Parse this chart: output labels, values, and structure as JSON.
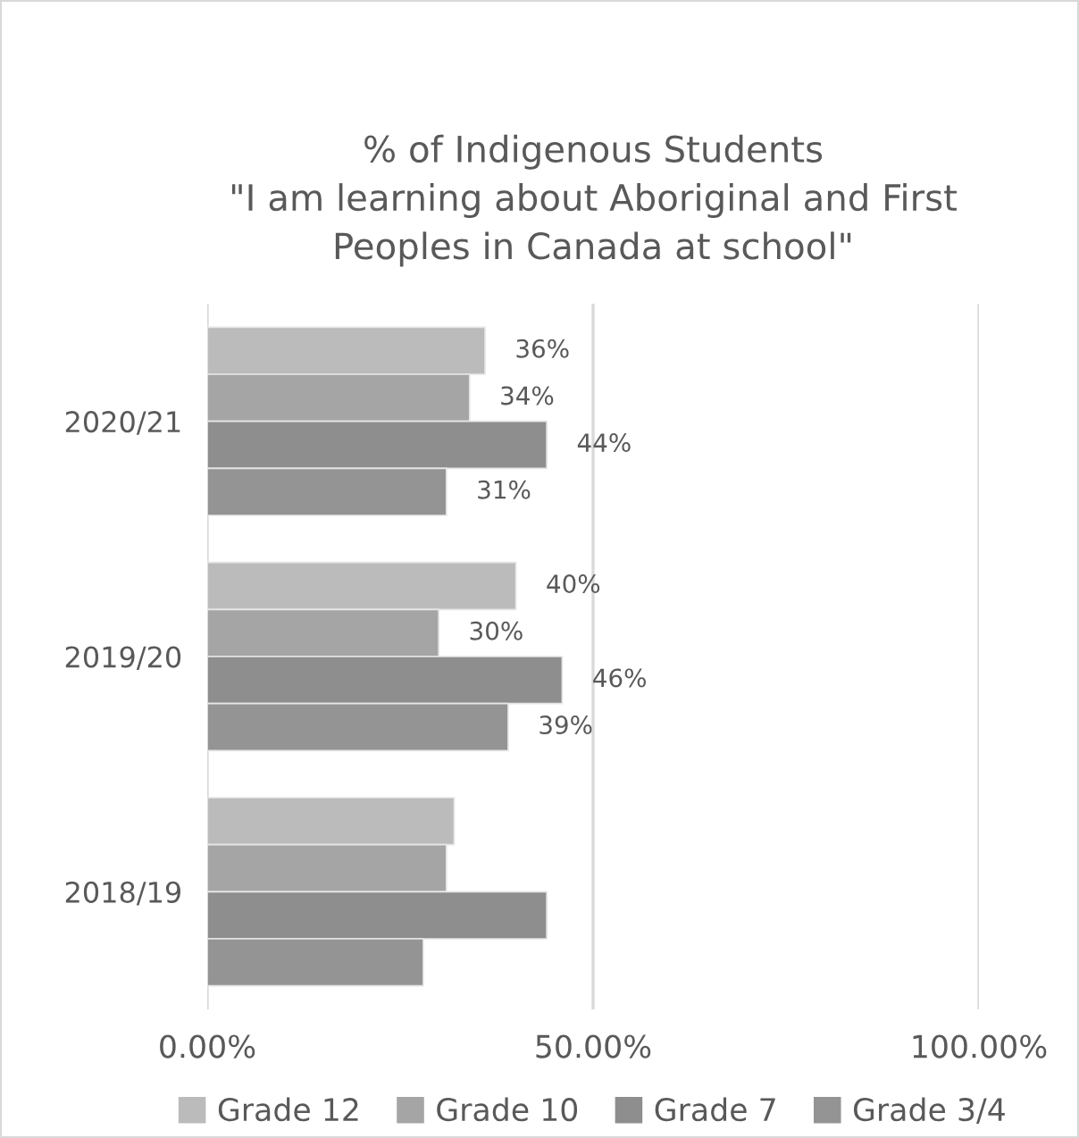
{
  "chart_data": {
    "type": "bar",
    "orientation": "horizontal",
    "title": "% of Indigenous Students\n\"I am learning about Aboriginal and First\nPeoples in Canada at school\"",
    "categories": [
      "2020/21",
      "2019/20",
      "2018/19"
    ],
    "series": [
      {
        "name": "Grade 12",
        "color": "#bbbbbb",
        "values": [
          36,
          40,
          32
        ],
        "value_labels": [
          "36%",
          "40%",
          null
        ]
      },
      {
        "name": "Grade 10",
        "color": "#a5a5a5",
        "values": [
          34,
          30,
          31
        ],
        "value_labels": [
          "34%",
          "30%",
          null
        ]
      },
      {
        "name": "Grade 7",
        "color": "#8e8e8e",
        "values": [
          44,
          46,
          44
        ],
        "value_labels": [
          "44%",
          "46%",
          null
        ]
      },
      {
        "name": "Grade 3/4",
        "color": "#949494",
        "values": [
          31,
          39,
          28
        ],
        "value_labels": [
          "31%",
          "39%",
          null
        ]
      }
    ],
    "xlim": [
      0,
      100
    ],
    "xticks": [
      {
        "value": 0,
        "label": "0.00%"
      },
      {
        "value": 50,
        "label": "50.00%"
      },
      {
        "value": 100,
        "label": "100.00%"
      }
    ],
    "grid": "x",
    "legend": "bottom"
  }
}
